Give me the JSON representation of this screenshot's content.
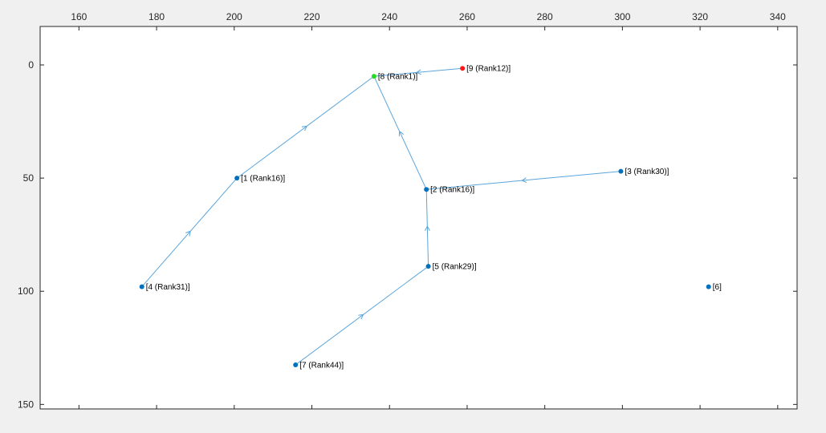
{
  "chart_data": {
    "type": "scatter",
    "title": "",
    "xlabel": "",
    "ylabel": "",
    "xlim": [
      150,
      345
    ],
    "ylim": [
      152,
      -17
    ],
    "y_direction": "down",
    "x_axis_position": "top",
    "grid": false,
    "xticks": [
      160,
      180,
      200,
      220,
      240,
      260,
      280,
      300,
      320,
      340
    ],
    "yticks": [
      0,
      50,
      100,
      150
    ],
    "edge_color": "#5aa5da",
    "nodes": [
      {
        "id": 1,
        "x": 200.7,
        "y": 50.0,
        "label": "[1 (Rank16)]",
        "color": "#0072bd"
      },
      {
        "id": 2,
        "x": 249.5,
        "y": 55.0,
        "label": "[2 (Rank16)]",
        "color": "#0072bd"
      },
      {
        "id": 3,
        "x": 299.6,
        "y": 47.0,
        "label": "[3 (Rank30)]",
        "color": "#0072bd"
      },
      {
        "id": 4,
        "x": 176.2,
        "y": 98.0,
        "label": "[4 (Rank31)]",
        "color": "#0072bd"
      },
      {
        "id": 5,
        "x": 250.0,
        "y": 89.0,
        "label": "[5 (Rank29)]",
        "color": "#0072bd"
      },
      {
        "id": 6,
        "x": 322.2,
        "y": 98.0,
        "label": "[6]",
        "color": "#0072bd"
      },
      {
        "id": 7,
        "x": 215.8,
        "y": 132.5,
        "label": "[7 (Rank44)]",
        "color": "#0072bd"
      },
      {
        "id": 8,
        "x": 236.0,
        "y": 5.0,
        "label": "[8 (Rank1)]",
        "color": "#22dd22"
      },
      {
        "id": 9,
        "x": 258.8,
        "y": 1.5,
        "label": "[9 (Rank12)]",
        "color": "#ff1a1a"
      }
    ],
    "edges": [
      {
        "from": 9,
        "to": 8
      },
      {
        "from": 1,
        "to": 8
      },
      {
        "from": 2,
        "to": 8
      },
      {
        "from": 3,
        "to": 2
      },
      {
        "from": 5,
        "to": 2
      },
      {
        "from": 4,
        "to": 1
      },
      {
        "from": 7,
        "to": 5
      }
    ]
  }
}
